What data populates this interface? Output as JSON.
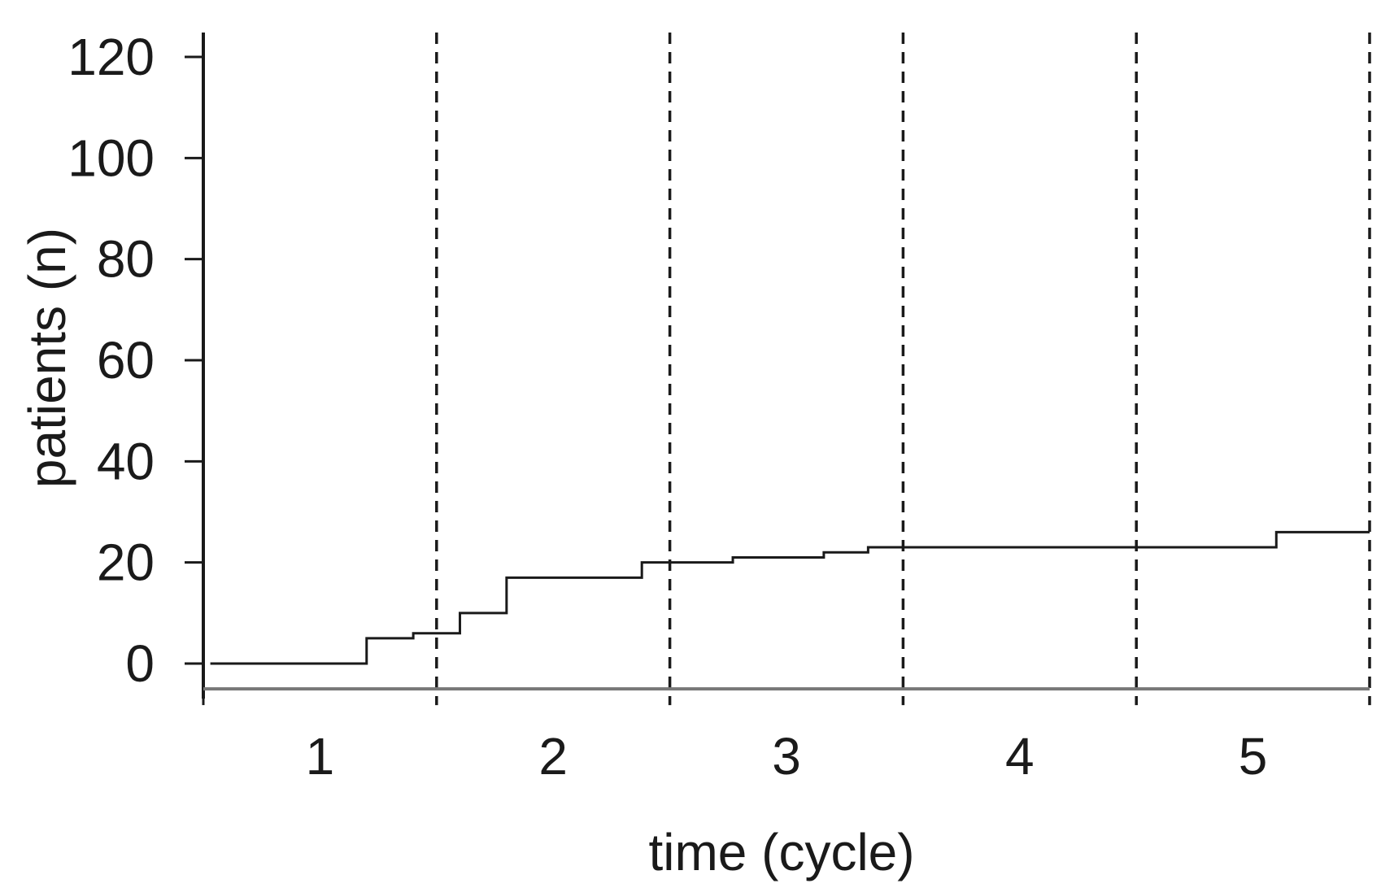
{
  "chart_data": {
    "type": "line",
    "subtype": "step",
    "title": "",
    "xlabel": "time (cycle)",
    "ylabel": "patients (n)",
    "xlim": [
      0,
      5
    ],
    "ylim": [
      -5,
      120
    ],
    "yticks": [
      0,
      20,
      40,
      60,
      80,
      100,
      120
    ],
    "categories": [
      "1",
      "2",
      "3",
      "4",
      "5"
    ],
    "cycle_boundaries": [
      1,
      2,
      3,
      4,
      5
    ],
    "boundary_style": "dashed",
    "grid": false,
    "legend": "none",
    "colors": {
      "line": "#1a1a1a",
      "axis": "#1a1a1a",
      "baseline": "#777777"
    },
    "series": [
      {
        "steps": [
          {
            "x": 0.03,
            "y": 0
          },
          {
            "x": 0.7,
            "y": 5
          },
          {
            "x": 0.9,
            "y": 6
          },
          {
            "x": 1.1,
            "y": 10
          },
          {
            "x": 1.3,
            "y": 17
          },
          {
            "x": 1.88,
            "y": 20
          },
          {
            "x": 2.27,
            "y": 21
          },
          {
            "x": 2.66,
            "y": 22
          },
          {
            "x": 2.85,
            "y": 23
          },
          {
            "x": 4.6,
            "y": 26
          },
          {
            "x": 5.0,
            "y": 26
          }
        ]
      }
    ]
  }
}
